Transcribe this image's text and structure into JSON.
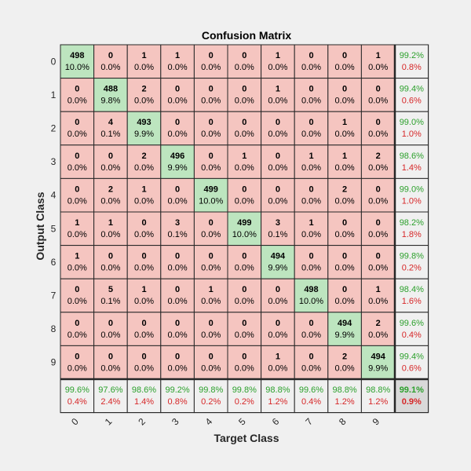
{
  "chart_data": {
    "type": "heatmap",
    "title": "Confusion Matrix",
    "xlabel": "Target Class",
    "ylabel": "Output Class",
    "classes": [
      "0",
      "1",
      "2",
      "3",
      "4",
      "5",
      "6",
      "7",
      "8",
      "9"
    ],
    "matrix": [
      [
        498,
        0,
        1,
        1,
        0,
        0,
        1,
        0,
        0,
        1
      ],
      [
        0,
        488,
        2,
        0,
        0,
        0,
        1,
        0,
        0,
        0
      ],
      [
        0,
        4,
        493,
        0,
        0,
        0,
        0,
        0,
        1,
        0
      ],
      [
        0,
        0,
        2,
        496,
        0,
        1,
        0,
        1,
        1,
        2
      ],
      [
        0,
        2,
        1,
        0,
        499,
        0,
        0,
        0,
        2,
        0
      ],
      [
        1,
        1,
        0,
        3,
        0,
        499,
        3,
        1,
        0,
        0
      ],
      [
        1,
        0,
        0,
        0,
        0,
        0,
        494,
        0,
        0,
        0
      ],
      [
        0,
        5,
        1,
        0,
        1,
        0,
        0,
        498,
        0,
        1
      ],
      [
        0,
        0,
        0,
        0,
        0,
        0,
        0,
        0,
        494,
        2
      ],
      [
        0,
        0,
        0,
        0,
        0,
        0,
        1,
        0,
        2,
        494
      ]
    ],
    "cell_percent": [
      [
        "10.0%",
        "0.0%",
        "0.0%",
        "0.0%",
        "0.0%",
        "0.0%",
        "0.0%",
        "0.0%",
        "0.0%",
        "0.0%"
      ],
      [
        "0.0%",
        "9.8%",
        "0.0%",
        "0.0%",
        "0.0%",
        "0.0%",
        "0.0%",
        "0.0%",
        "0.0%",
        "0.0%"
      ],
      [
        "0.0%",
        "0.1%",
        "9.9%",
        "0.0%",
        "0.0%",
        "0.0%",
        "0.0%",
        "0.0%",
        "0.0%",
        "0.0%"
      ],
      [
        "0.0%",
        "0.0%",
        "0.0%",
        "9.9%",
        "0.0%",
        "0.0%",
        "0.0%",
        "0.0%",
        "0.0%",
        "0.0%"
      ],
      [
        "0.0%",
        "0.0%",
        "0.0%",
        "0.0%",
        "10.0%",
        "0.0%",
        "0.0%",
        "0.0%",
        "0.0%",
        "0.0%"
      ],
      [
        "0.0%",
        "0.0%",
        "0.0%",
        "0.1%",
        "0.0%",
        "10.0%",
        "0.1%",
        "0.0%",
        "0.0%",
        "0.0%"
      ],
      [
        "0.0%",
        "0.0%",
        "0.0%",
        "0.0%",
        "0.0%",
        "0.0%",
        "9.9%",
        "0.0%",
        "0.0%",
        "0.0%"
      ],
      [
        "0.0%",
        "0.1%",
        "0.0%",
        "0.0%",
        "0.0%",
        "0.0%",
        "0.0%",
        "10.0%",
        "0.0%",
        "0.0%"
      ],
      [
        "0.0%",
        "0.0%",
        "0.0%",
        "0.0%",
        "0.0%",
        "0.0%",
        "0.0%",
        "0.0%",
        "9.9%",
        "0.0%"
      ],
      [
        "0.0%",
        "0.0%",
        "0.0%",
        "0.0%",
        "0.0%",
        "0.0%",
        "0.0%",
        "0.0%",
        "0.0%",
        "9.9%"
      ]
    ],
    "row_summary": [
      [
        "99.2%",
        "0.8%"
      ],
      [
        "99.4%",
        "0.6%"
      ],
      [
        "99.0%",
        "1.0%"
      ],
      [
        "98.6%",
        "1.4%"
      ],
      [
        "99.0%",
        "1.0%"
      ],
      [
        "98.2%",
        "1.8%"
      ],
      [
        "99.8%",
        "0.2%"
      ],
      [
        "98.4%",
        "1.6%"
      ],
      [
        "99.6%",
        "0.4%"
      ],
      [
        "99.4%",
        "0.6%"
      ]
    ],
    "col_summary": [
      [
        "99.6%",
        "0.4%"
      ],
      [
        "97.6%",
        "2.4%"
      ],
      [
        "98.6%",
        "1.4%"
      ],
      [
        "99.2%",
        "0.8%"
      ],
      [
        "99.8%",
        "0.2%"
      ],
      [
        "99.8%",
        "0.2%"
      ],
      [
        "98.8%",
        "1.2%"
      ],
      [
        "99.6%",
        "0.4%"
      ],
      [
        "98.8%",
        "1.2%"
      ],
      [
        "98.8%",
        "1.2%"
      ]
    ],
    "overall": [
      "99.1%",
      "0.9%"
    ],
    "colors": {
      "correct": "#bde5bf",
      "incorrect": "#f5c5c0",
      "summary": "#f0f0f0",
      "overall": "#d9d9d9",
      "good_text": "#2ca02c",
      "bad_text": "#d62728",
      "background": "#f0f0f0"
    }
  }
}
